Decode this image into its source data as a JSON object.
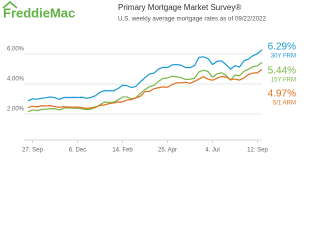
{
  "chart_data": {
    "type": "line",
    "brand": "FreddieMac",
    "title": "Primary Mortgage Market Survey®",
    "subtitle": "U.S. weekly average mortgage rates as of 09/22/2022",
    "categories": [
      null,
      "27. Sep",
      null,
      null,
      null,
      null,
      null,
      null,
      null,
      null,
      null,
      "6. Dec",
      null,
      null,
      null,
      null,
      null,
      null,
      null,
      null,
      null,
      "14. Feb",
      null,
      null,
      null,
      null,
      null,
      null,
      null,
      null,
      null,
      "25. Apr",
      null,
      null,
      null,
      null,
      null,
      null,
      null,
      null,
      null,
      "4. Jul",
      null,
      null,
      null,
      null,
      null,
      null,
      null,
      null,
      null,
      "12. Sep",
      null
    ],
    "series": [
      {
        "name": "30Y FRM",
        "color": "#1a9ad6",
        "end_label": "6.29%",
        "values": [
          2.88,
          3.01,
          2.99,
          3.05,
          3.09,
          3.14,
          3.09,
          2.98,
          3.1,
          3.1,
          3.11,
          3.1,
          3.12,
          3.05,
          3.11,
          3.22,
          3.45,
          3.56,
          3.55,
          3.55,
          3.69,
          3.92,
          3.89,
          3.76,
          3.85,
          4.16,
          4.42,
          4.67,
          4.72,
          5.0,
          5.11,
          5.1,
          5.27,
          5.3,
          5.25,
          5.1,
          5.09,
          5.23,
          5.78,
          5.81,
          5.7,
          5.3,
          5.51,
          5.54,
          5.3,
          4.99,
          5.22,
          5.13,
          5.55,
          5.66,
          5.89,
          6.02,
          6.29
        ]
      },
      {
        "name": "15Y FRM",
        "color": "#7ab648",
        "end_label": "5.44%",
        "values": [
          2.15,
          2.28,
          2.23,
          2.3,
          2.33,
          2.35,
          2.35,
          2.27,
          2.39,
          2.42,
          2.39,
          2.38,
          2.34,
          2.3,
          2.33,
          2.43,
          2.62,
          2.8,
          2.77,
          2.79,
          2.93,
          3.14,
          3.14,
          3.01,
          3.09,
          3.39,
          3.63,
          3.83,
          3.91,
          4.17,
          4.38,
          4.4,
          4.52,
          4.48,
          4.43,
          4.31,
          4.32,
          4.38,
          4.81,
          4.92,
          4.83,
          4.45,
          4.67,
          4.75,
          4.58,
          4.26,
          4.59,
          4.55,
          4.85,
          4.98,
          5.16,
          5.21,
          5.44
        ]
      },
      {
        "name": "5/1 ARM",
        "color": "#e0701f",
        "end_label": "4.97%",
        "values": [
          2.43,
          2.52,
          2.48,
          2.55,
          2.54,
          2.56,
          2.49,
          2.45,
          2.49,
          2.47,
          2.45,
          2.47,
          2.42,
          2.37,
          2.41,
          2.47,
          2.57,
          2.61,
          2.69,
          2.74,
          2.8,
          2.81,
          2.93,
          2.97,
          3.08,
          3.19,
          3.5,
          3.51,
          3.69,
          3.75,
          3.81,
          3.78,
          3.96,
          4.08,
          4.08,
          4.12,
          4.04,
          4.18,
          4.33,
          4.49,
          4.32,
          4.25,
          4.39,
          4.5,
          4.47,
          4.29,
          4.33,
          4.26,
          4.41,
          4.64,
          4.73,
          4.75,
          4.97
        ]
      }
    ],
    "ylim": [
      0.27,
      6.8
    ],
    "yticks": [
      {
        "value": 2,
        "label": "2.00%"
      },
      {
        "value": 4,
        "label": "4.00%"
      },
      {
        "value": 6,
        "label": "6.00%"
      }
    ],
    "grid": true
  }
}
